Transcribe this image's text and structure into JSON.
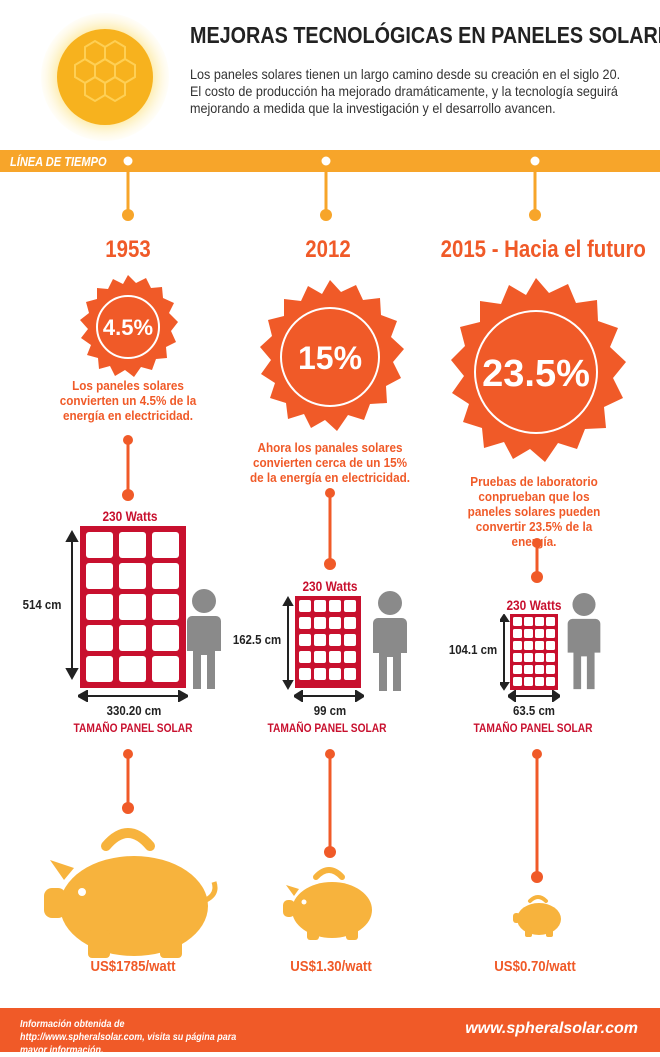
{
  "header": {
    "title": "MEJORAS TECNOLÓGICAS EN PANELES SOLARES",
    "intro": "Los paneles solares tienen un largo camino desde su creación en el siglo 20. El costo de producción ha mejorado dramáticamente, y la tecnología seguirá mejorando a medida que la investigación y el desarrollo avancen."
  },
  "timeline": {
    "label": "LÍNEA DE TIEMPO",
    "columns": [
      {
        "year": "1953",
        "efficiency": "4.5%",
        "description": "Los paneles solares convierten un 4.5% de la energía en electricidad.",
        "watts": "230 Watts",
        "height": "514 cm",
        "width": "330.20 cm",
        "caption": "TAMAÑO PANEL SOLAR",
        "price": "US$1785/watt"
      },
      {
        "year": "2012",
        "efficiency": "15%",
        "description": "Ahora los panales solares convierten cerca de un 15% de la energía en electricidad.",
        "watts": "230 Watts",
        "height": "162.5 cm",
        "width": "99 cm",
        "caption": "TAMAÑO PANEL SOLAR",
        "price": "US$1.30/watt"
      },
      {
        "year": "2015 - Hacia el futuro",
        "efficiency": "23.5%",
        "description": "Pruebas de laboratorio conprueban que los paneles solares pueden convertir 23.5% de la energía.",
        "watts": "230 Watts",
        "height": "104.1 cm",
        "width": "63.5 cm",
        "caption": "TAMAÑO PANEL SOLAR",
        "price": "US$0.70/watt"
      }
    ]
  },
  "footer": {
    "source": "Información obtenida de http://www.spheralsolar.com, visita su página para mayor información.",
    "site": "www.spheralsolar.com"
  },
  "colors": {
    "orange": "#f05a28",
    "amber": "#f7a52a",
    "red": "#c8102e",
    "gray": "#8a8a8a"
  }
}
